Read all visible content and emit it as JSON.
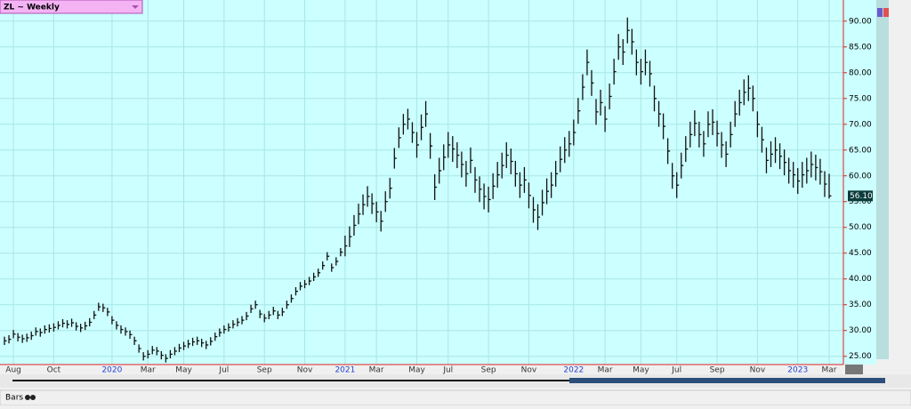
{
  "chart_data": {
    "type": "hlc",
    "title": "ZL ~ Weekly",
    "footer": "Bars",
    "color": "#111111",
    "grid": true,
    "categories": [
      null,
      null,
      "Aug",
      null,
      null,
      null,
      null,
      null,
      null,
      null,
      null,
      "Oct",
      null,
      null,
      null,
      null,
      null,
      null,
      null,
      null,
      null,
      null,
      null,
      null,
      "2020",
      null,
      null,
      null,
      null,
      null,
      null,
      null,
      "Mar",
      null,
      null,
      null,
      null,
      null,
      null,
      null,
      "May",
      null,
      null,
      null,
      null,
      null,
      null,
      null,
      null,
      "Jul",
      null,
      null,
      null,
      null,
      null,
      null,
      null,
      null,
      "Sep",
      null,
      null,
      null,
      null,
      null,
      null,
      null,
      null,
      "Nov",
      null,
      null,
      null,
      null,
      null,
      null,
      null,
      null,
      "2021",
      null,
      null,
      null,
      null,
      null,
      null,
      "Mar",
      null,
      null,
      null,
      null,
      null,
      null,
      null,
      null,
      "May",
      null,
      null,
      null,
      null,
      null,
      null,
      "Jul",
      null,
      null,
      null,
      null,
      null,
      null,
      null,
      null,
      "Sep",
      null,
      null,
      null,
      null,
      null,
      null,
      null,
      null,
      "Nov",
      null,
      null,
      null,
      null,
      null,
      null,
      null,
      null,
      null,
      "2022",
      null,
      null,
      null,
      null,
      null,
      null,
      "Mar",
      null,
      null,
      null,
      null,
      null,
      null,
      null,
      "May",
      null,
      null,
      null,
      null,
      null,
      null,
      null,
      "Jul",
      null,
      null,
      null,
      null,
      null,
      null,
      null,
      null,
      "Sep",
      null,
      null,
      null,
      null,
      null,
      null,
      null,
      null,
      "Nov",
      null,
      null,
      null,
      null,
      null,
      null,
      null,
      null,
      "2023",
      null,
      null,
      null,
      null,
      null,
      null,
      "Mar"
    ],
    "high": [
      28.8,
      29.1,
      30.1,
      29.5,
      29.2,
      29.4,
      29.8,
      30.6,
      30.4,
      31.0,
      31.2,
      31.4,
      31.8,
      32.2,
      32.0,
      32.3,
      31.6,
      31.3,
      31.7,
      32.4,
      33.8,
      35.4,
      35.2,
      34.4,
      32.8,
      31.8,
      31.0,
      30.6,
      30.0,
      28.8,
      27.3,
      25.8,
      26.2,
      27.0,
      26.8,
      26.0,
      25.4,
      26.2,
      26.8,
      27.4,
      27.8,
      28.2,
      28.6,
      28.8,
      28.4,
      28.0,
      28.7,
      29.6,
      30.4,
      31.0,
      31.4,
      32.0,
      32.4,
      32.8,
      33.6,
      35.0,
      35.8,
      34.0,
      33.2,
      33.8,
      34.6,
      33.8,
      34.4,
      35.8,
      37.0,
      38.4,
      39.4,
      39.8,
      40.4,
      41.2,
      42.0,
      43.4,
      45.2,
      43.0,
      44.2,
      46.0,
      48.4,
      50.2,
      52.4,
      54.6,
      56.4,
      58.0,
      56.6,
      55.0,
      53.2,
      57.0,
      59.6,
      65.4,
      69.4,
      72.0,
      73.0,
      70.4,
      68.5,
      71.9,
      74.5,
      68.3,
      60.3,
      63.5,
      66.1,
      68.5,
      67.7,
      66.5,
      64.7,
      62.9,
      65.5,
      61.7,
      59.9,
      58.5,
      57.9,
      60.5,
      62.7,
      64.5,
      66.5,
      65.3,
      62.9,
      60.7,
      61.7,
      58.7,
      55.9,
      54.5,
      57.3,
      59.5,
      60.7,
      62.9,
      65.7,
      67.5,
      68.7,
      70.9,
      75.1,
      79.7,
      84.5,
      80.5,
      74.9,
      76.7,
      73.5,
      77.9,
      82.7,
      87.5,
      86.5,
      90.7,
      88.5,
      84.5,
      82.7,
      84.5,
      82.3,
      77.5,
      74.5,
      72.1,
      67.3,
      62.5,
      60.7,
      64.5,
      67.7,
      70.5,
      72.7,
      70.5,
      68.7,
      72.5,
      72.9,
      70.7,
      68.5,
      66.7,
      70.5,
      74.5,
      76.7,
      78.7,
      79.5,
      77.5,
      72.5,
      69.5,
      65.5,
      66.7,
      67.5,
      66.3,
      65.1,
      63.5,
      62.7,
      61.5,
      62.7,
      63.5,
      64.7,
      64.1,
      63.3,
      60.9,
      60.4
    ],
    "low": [
      27.2,
      27.5,
      28.5,
      27.9,
      27.6,
      27.8,
      28.2,
      29.0,
      28.8,
      29.4,
      29.6,
      29.8,
      30.2,
      30.6,
      30.4,
      30.7,
      30.0,
      29.7,
      30.1,
      30.8,
      32.2,
      33.8,
      33.6,
      32.8,
      31.2,
      30.2,
      29.4,
      29.0,
      28.4,
      27.2,
      25.7,
      24.2,
      24.6,
      25.4,
      25.2,
      24.4,
      23.8,
      24.6,
      25.2,
      25.8,
      26.2,
      26.6,
      27.0,
      27.2,
      26.8,
      26.4,
      27.1,
      28.0,
      28.8,
      29.4,
      29.8,
      30.4,
      30.8,
      31.2,
      32.0,
      33.4,
      34.2,
      32.4,
      31.6,
      32.2,
      33.0,
      32.2,
      32.8,
      34.2,
      35.4,
      36.8,
      37.8,
      38.2,
      38.8,
      39.6,
      40.4,
      41.8,
      43.6,
      41.4,
      42.6,
      44.4,
      44.4,
      46.2,
      48.4,
      50.6,
      52.4,
      54.0,
      52.6,
      51.0,
      49.2,
      53.0,
      55.6,
      61.4,
      65.4,
      68.0,
      69.0,
      66.4,
      63.5,
      66.9,
      69.5,
      63.3,
      55.3,
      58.5,
      61.1,
      63.5,
      62.7,
      61.5,
      59.7,
      57.9,
      60.5,
      56.7,
      54.9,
      53.5,
      52.9,
      55.5,
      57.7,
      59.5,
      61.5,
      60.3,
      57.9,
      55.7,
      56.7,
      53.7,
      50.9,
      49.5,
      52.3,
      54.5,
      55.7,
      57.9,
      60.7,
      62.5,
      63.7,
      65.9,
      70.1,
      74.7,
      79.5,
      75.5,
      69.9,
      71.7,
      68.5,
      72.9,
      77.7,
      82.5,
      81.5,
      85.7,
      83.5,
      79.5,
      77.7,
      79.5,
      77.3,
      72.5,
      69.5,
      67.1,
      62.3,
      57.5,
      55.7,
      59.5,
      62.7,
      65.5,
      67.7,
      65.5,
      63.7,
      67.5,
      67.9,
      65.7,
      63.5,
      61.7,
      65.5,
      69.5,
      71.7,
      73.7,
      74.5,
      72.5,
      67.5,
      64.5,
      60.5,
      61.7,
      62.5,
      61.3,
      60.1,
      58.5,
      57.7,
      56.5,
      57.7,
      58.5,
      59.7,
      59.1,
      58.3,
      55.9,
      55.6
    ],
    "close": [
      28.0,
      28.3,
      29.3,
      28.7,
      28.4,
      28.6,
      29.0,
      29.8,
      29.6,
      30.2,
      30.4,
      30.6,
      31.0,
      31.4,
      31.2,
      31.5,
      30.8,
      30.5,
      30.9,
      31.6,
      33.0,
      34.6,
      34.4,
      33.6,
      32.0,
      31.0,
      30.2,
      29.8,
      29.2,
      28.0,
      26.5,
      25.0,
      25.4,
      26.2,
      26.0,
      25.2,
      24.6,
      25.4,
      26.0,
      26.6,
      27.0,
      27.4,
      27.8,
      28.0,
      27.6,
      27.2,
      27.9,
      28.8,
      29.6,
      30.2,
      30.6,
      31.2,
      31.6,
      32.0,
      32.8,
      34.2,
      35.0,
      33.2,
      32.4,
      33.0,
      33.8,
      33.0,
      33.6,
      35.0,
      36.2,
      37.6,
      38.6,
      39.0,
      39.6,
      40.4,
      41.2,
      42.6,
      44.4,
      42.2,
      43.4,
      45.2,
      46.4,
      48.2,
      50.4,
      52.6,
      54.4,
      56.0,
      54.6,
      53.0,
      51.2,
      55.0,
      57.6,
      63.4,
      67.4,
      70.0,
      71.0,
      68.4,
      66.0,
      69.4,
      72.0,
      65.8,
      57.8,
      61.0,
      63.6,
      66.0,
      65.2,
      64.0,
      62.2,
      60.4,
      63.0,
      59.2,
      57.4,
      56.0,
      55.4,
      58.0,
      60.2,
      62.0,
      64.0,
      62.8,
      60.4,
      58.2,
      59.2,
      56.2,
      53.4,
      52.0,
      54.8,
      57.0,
      58.2,
      60.4,
      63.2,
      65.0,
      66.2,
      68.4,
      72.6,
      77.2,
      82.0,
      78.0,
      72.4,
      74.2,
      71.0,
      75.4,
      80.2,
      85.0,
      84.0,
      88.2,
      86.0,
      82.0,
      80.2,
      82.0,
      79.8,
      75.0,
      72.0,
      69.6,
      64.8,
      60.0,
      58.2,
      62.0,
      65.2,
      68.0,
      70.2,
      68.0,
      66.2,
      70.0,
      70.4,
      68.2,
      66.0,
      64.2,
      68.0,
      72.0,
      74.2,
      76.2,
      77.0,
      75.0,
      70.0,
      67.0,
      63.0,
      64.2,
      65.0,
      63.8,
      62.6,
      61.0,
      60.2,
      59.0,
      60.2,
      61.0,
      62.2,
      61.6,
      60.8,
      58.4,
      56.1
    ],
    "last_value_label": "56.10",
    "ylim": [
      23.4,
      94.1
    ],
    "yticks": [
      {
        "value": 25,
        "label": "25.00"
      },
      {
        "value": 30,
        "label": "30.00"
      },
      {
        "value": 35,
        "label": "35.00"
      },
      {
        "value": 40,
        "label": "40.00"
      },
      {
        "value": 45,
        "label": "45.00"
      },
      {
        "value": 50,
        "label": "50.00"
      },
      {
        "value": 55,
        "label": "55.00"
      },
      {
        "value": 60,
        "label": "60.00"
      },
      {
        "value": 65,
        "label": "65.00"
      },
      {
        "value": 70,
        "label": "70.00"
      },
      {
        "value": 75,
        "label": "75.00"
      },
      {
        "value": 80,
        "label": "80.00"
      },
      {
        "value": 85,
        "label": "85.00"
      },
      {
        "value": 90,
        "label": "90.00"
      }
    ]
  }
}
